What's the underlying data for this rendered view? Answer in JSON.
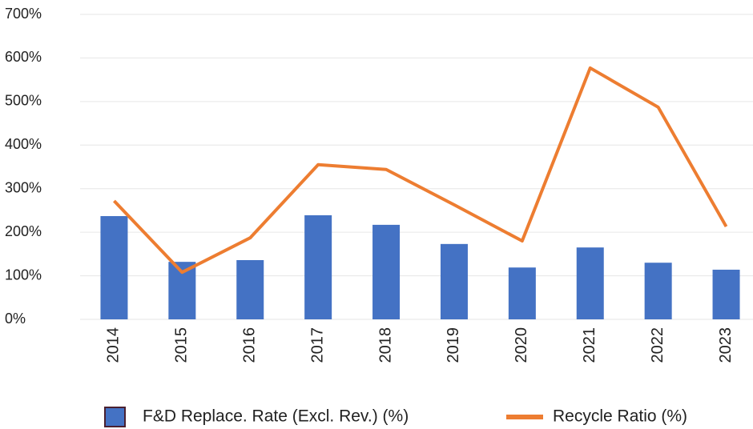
{
  "chart_data": {
    "type": "bar-line",
    "categories": [
      "2014",
      "2015",
      "2016",
      "2017",
      "2018",
      "2019",
      "2020",
      "2021",
      "2022",
      "2023"
    ],
    "series": [
      {
        "name": "F&D Replace. Rate (Excl. Rev.) (%)",
        "type": "bar",
        "color": "#4472c4",
        "values": [
          237,
          132,
          136,
          239,
          217,
          173,
          119,
          165,
          130,
          114
        ]
      },
      {
        "name": "Recycle Ratio (%)",
        "type": "line",
        "color": "#ed7d31",
        "values": [
          272,
          108,
          187,
          355,
          344,
          263,
          180,
          577,
          487,
          213
        ]
      }
    ],
    "ylim": [
      0,
      700
    ],
    "yticks": [
      {
        "value": 0,
        "label": "0%"
      },
      {
        "value": 100,
        "label": "100%"
      },
      {
        "value": 200,
        "label": "200%"
      },
      {
        "value": 300,
        "label": "300%"
      },
      {
        "value": 400,
        "label": "400%"
      },
      {
        "value": 500,
        "label": "500%"
      },
      {
        "value": 600,
        "label": "600%"
      },
      {
        "value": 700,
        "label": "700%"
      }
    ],
    "grid": true,
    "legend": "bottom"
  }
}
